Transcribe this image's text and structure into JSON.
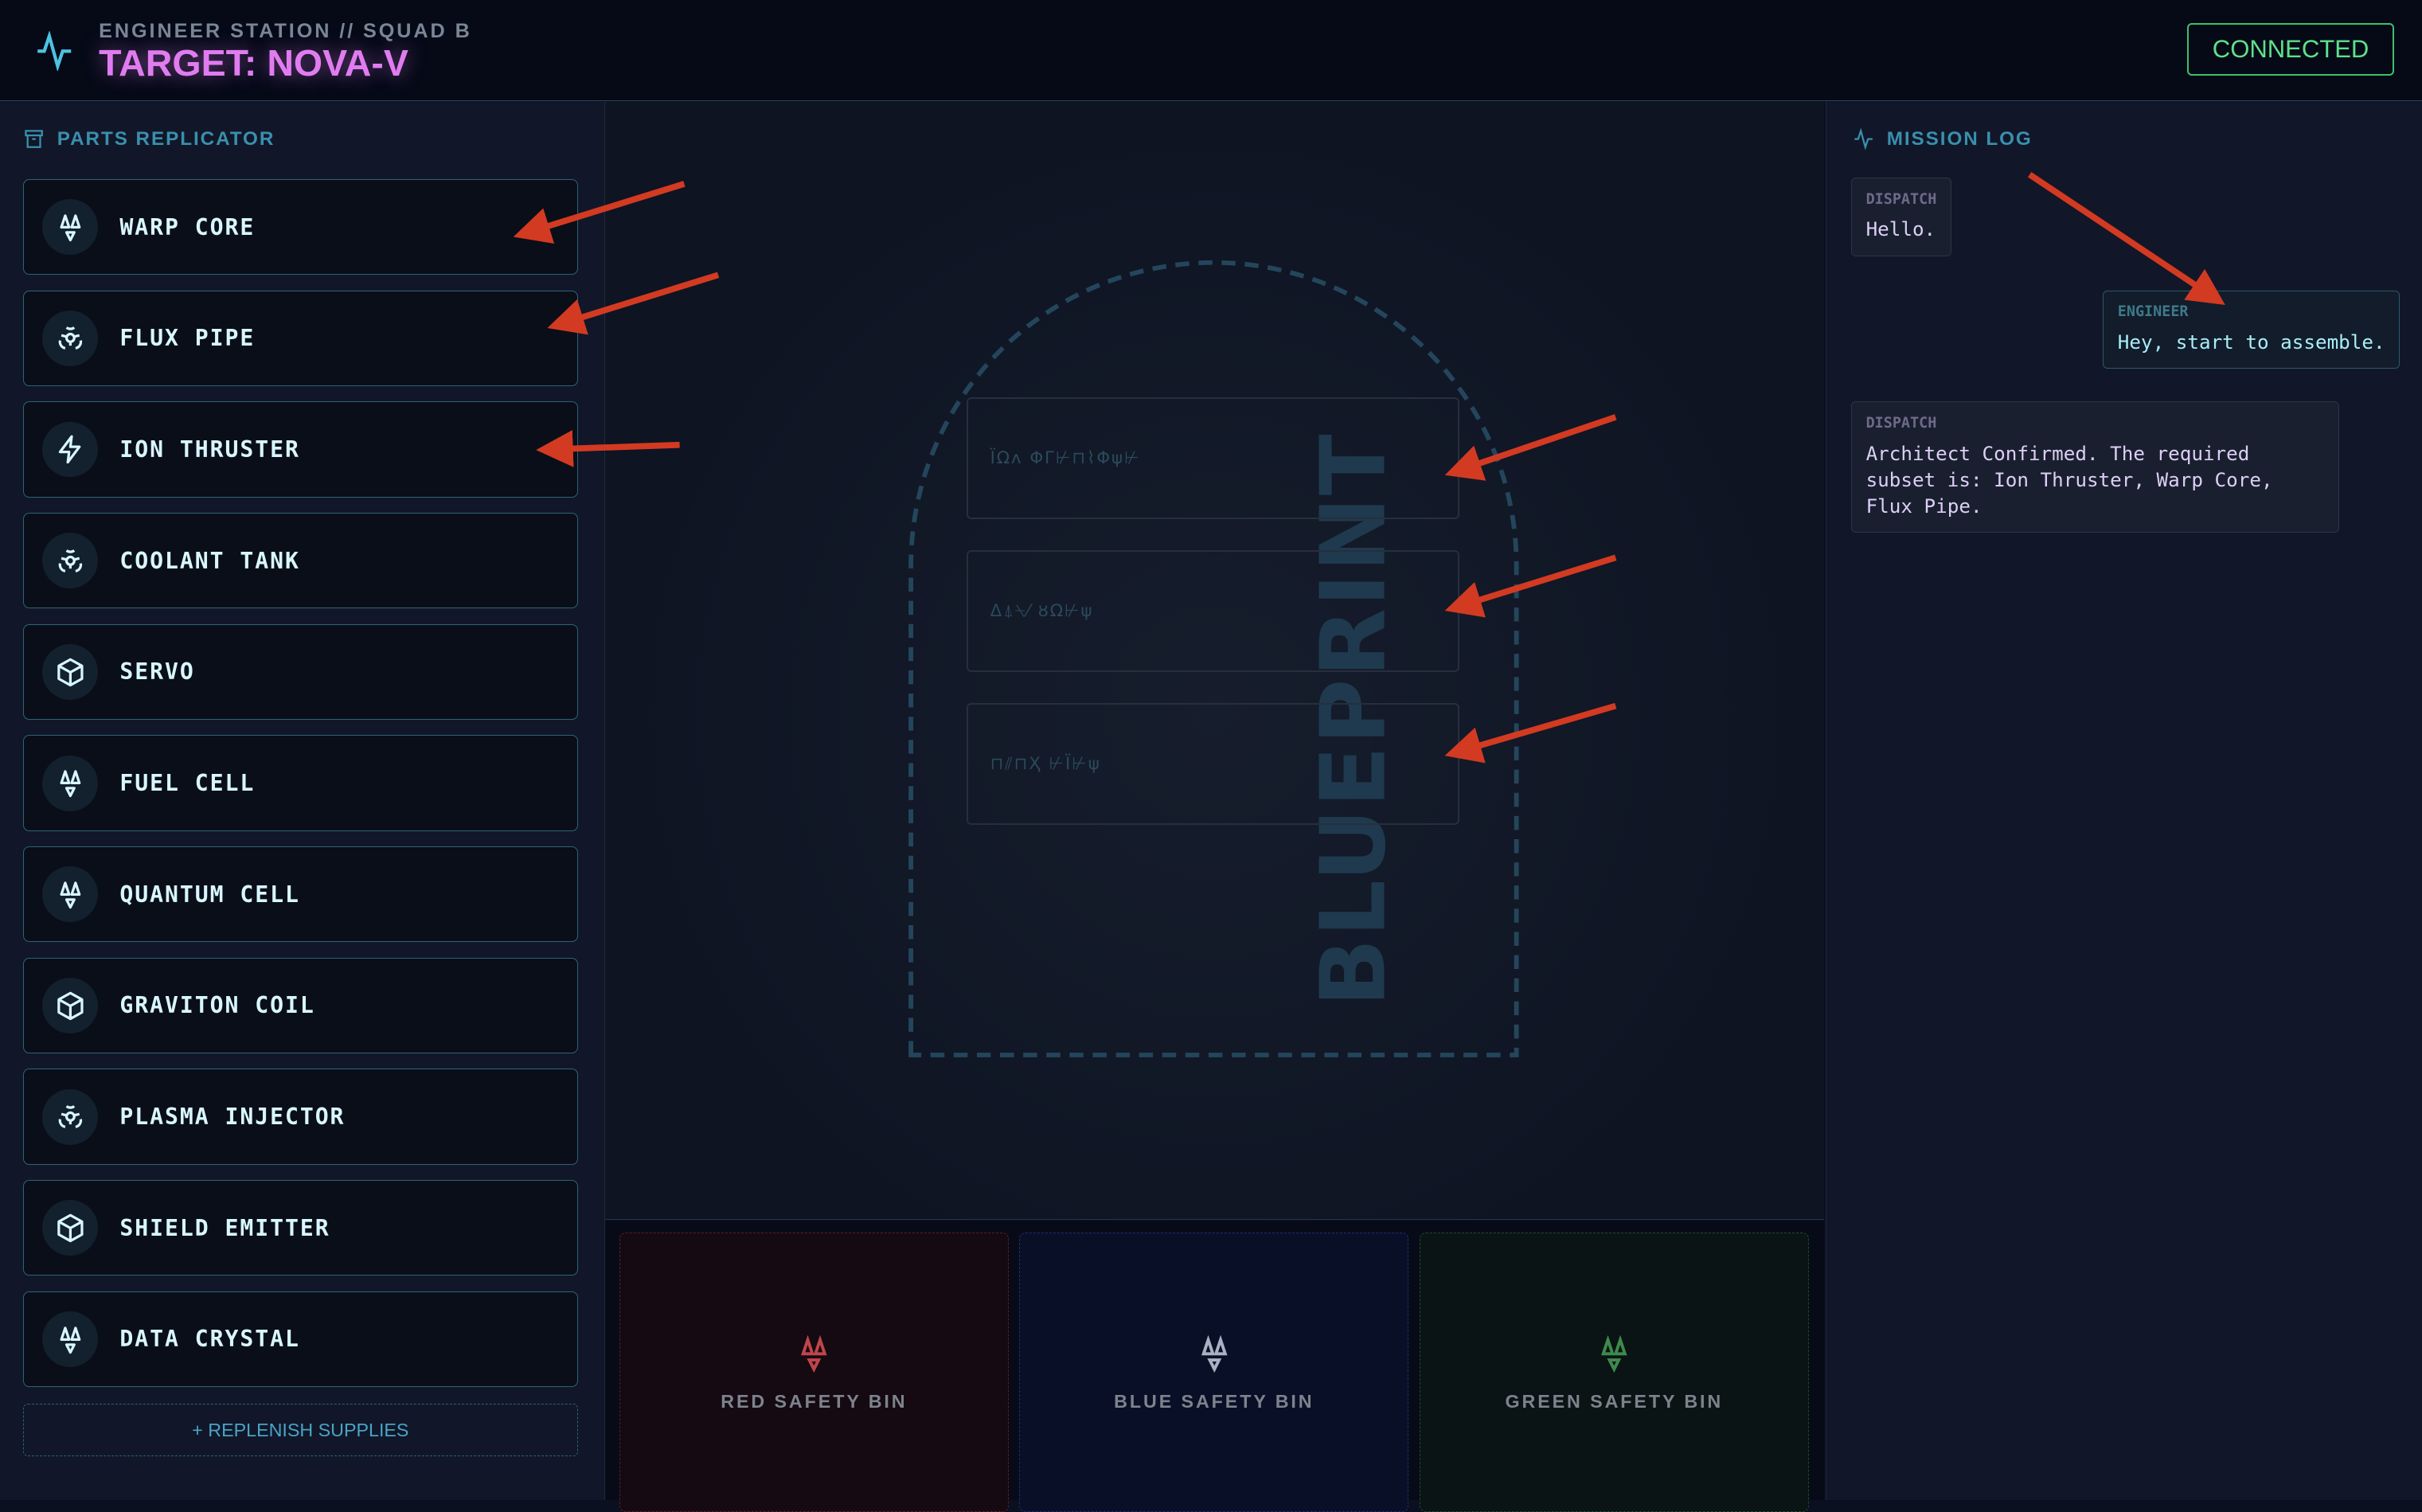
{
  "header": {
    "subtitle": "ENGINEER STATION // SQUAD B",
    "title": "TARGET: NOVA-V",
    "status": "CONNECTED",
    "status_color": "#5ee08a",
    "title_color": "#e07cf0"
  },
  "parts": {
    "heading": "PARTS REPLICATOR",
    "items": [
      {
        "label": "WARP CORE",
        "icon": "radiation-icon"
      },
      {
        "label": "FLUX PIPE",
        "icon": "biohazard-icon"
      },
      {
        "label": "ION THRUSTER",
        "icon": "lightning-icon"
      },
      {
        "label": "COOLANT TANK",
        "icon": "biohazard-icon"
      },
      {
        "label": "SERVO",
        "icon": "cube-icon"
      },
      {
        "label": "FUEL CELL",
        "icon": "radiation-icon"
      },
      {
        "label": "QUANTUM CELL",
        "icon": "radiation-icon"
      },
      {
        "label": "GRAVITON COIL",
        "icon": "cube-icon"
      },
      {
        "label": "PLASMA INJECTOR",
        "icon": "biohazard-icon"
      },
      {
        "label": "SHIELD EMITTER",
        "icon": "cube-icon"
      },
      {
        "label": "DATA CRYSTAL",
        "icon": "radiation-icon"
      }
    ],
    "replenish": "+ REPLENISH SUPPLIES"
  },
  "blueprint": {
    "watermark": "BLUEPRINT",
    "slots": [
      "ΪΩʌ ΦΓ⊬⊓⌇Φψ⊬",
      "Δ⍋⍀⁄ ȣΩ⊬ψ",
      "⊓⫽⊓Ҳ ⊬Ϊ⊬ψ"
    ]
  },
  "bins": [
    {
      "label": "RED SAFETY BIN",
      "color": "#c0454a"
    },
    {
      "label": "BLUE SAFETY BIN",
      "color": "#a9b2c2"
    },
    {
      "label": "GREEN SAFETY BIN",
      "color": "#3e8a4e"
    }
  ],
  "log": {
    "heading": "MISSION LOG",
    "messages": [
      {
        "sender": "DISPATCH",
        "text": "Hello."
      },
      {
        "sender": "ENGINEER",
        "text": "Hey, start to assemble."
      },
      {
        "sender": "DISPATCH",
        "text": "Architect Confirmed. The required subset is: Ion Thruster, Warp Core, Flux Pipe."
      }
    ]
  }
}
